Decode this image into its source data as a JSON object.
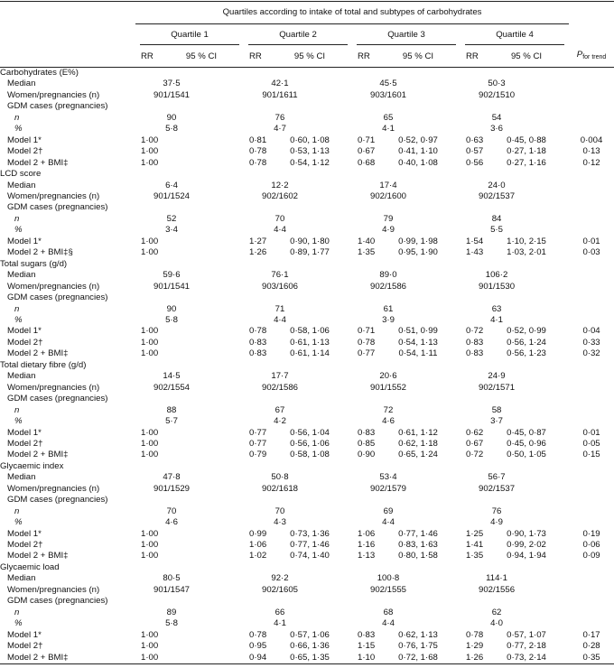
{
  "table": {
    "header": {
      "span_title": "Quartiles according to intake of total and subtypes of carbohydrates",
      "quartiles": [
        "Quartile 1",
        "Quartile 2",
        "Quartile 3",
        "Quartile 4"
      ],
      "rr": "RR",
      "ci": "95 % CI",
      "p_trend": {
        "symbol": "P",
        "subscript": "for trend"
      }
    },
    "sections": [
      {
        "title": "Carbohydrates (E%)",
        "rows": [
          {
            "label": "Median",
            "values": [
              "37·5",
              "42·1",
              "45·5",
              "50·3"
            ]
          },
          {
            "label": "Women/pregnancies (n)",
            "values": [
              "901/1541",
              "901/1611",
              "903/1601",
              "902/1510"
            ]
          },
          {
            "label": "GDM cases (pregnancies)",
            "rows": [
              {
                "label": "n",
                "values": [
                  "90",
                  "76",
                  "65",
                  "54"
                ]
              },
              {
                "label": "%",
                "values": [
                  "5·8",
                  "4·7",
                  "4·1",
                  "3·6"
                ]
              }
            ]
          },
          {
            "label": "Model 1*",
            "rr": [
              "1·00",
              "0·81",
              "0·71",
              "0·63"
            ],
            "ci": [
              "0·60, 1·08",
              "0·52, 0·97",
              "0·45, 0·88"
            ],
            "p": "0·004"
          },
          {
            "label": "Model 2†",
            "rr": [
              "1·00",
              "0·78",
              "0·67",
              "0·57"
            ],
            "ci": [
              "0·53, 1·13",
              "0·41, 1·10",
              "0·27, 1·18"
            ],
            "p": "0·13"
          },
          {
            "label": "Model 2 + BMI‡",
            "rr": [
              "1·00",
              "0·78",
              "0·68",
              "0·56"
            ],
            "ci": [
              "0·54, 1·12",
              "0·40, 1·08",
              "0·27, 1·16"
            ],
            "p": "0·12"
          }
        ]
      },
      {
        "title": "LCD score",
        "rows": [
          {
            "label": "Median",
            "values": [
              "6·4",
              "12·2",
              "17·4",
              "24·0"
            ]
          },
          {
            "label": "Women/pregnancies (n)",
            "values": [
              "901/1524",
              "902/1602",
              "902/1600",
              "902/1537"
            ]
          },
          {
            "label": "GDM cases (pregnancies)",
            "rows": [
              {
                "label": "n",
                "values": [
                  "52",
                  "70",
                  "79",
                  "84"
                ]
              },
              {
                "label": "%",
                "values": [
                  "3·4",
                  "4·4",
                  "4·9",
                  "5·5"
                ]
              }
            ]
          },
          {
            "label": "Model 1*",
            "rr": [
              "1·00",
              "1·27",
              "1·40",
              "1·54"
            ],
            "ci": [
              "0·90, 1·80",
              "0·99, 1·98",
              "1·10, 2·15"
            ],
            "p": "0·01"
          },
          {
            "label": "Model 2 + BMI‡§",
            "rr": [
              "1·00",
              "1·26",
              "1·35",
              "1·43"
            ],
            "ci": [
              "0·89, 1·77",
              "0·95, 1·90",
              "1·03, 2·01"
            ],
            "p": "0·03"
          }
        ]
      },
      {
        "title": "Total sugars (g/d)",
        "rows": [
          {
            "label": "Median",
            "values": [
              "59·6",
              "76·1",
              "89·0",
              "106·2"
            ]
          },
          {
            "label": "Women/pregnancies (n)",
            "values": [
              "901/1541",
              "903/1606",
              "902/1586",
              "901/1530"
            ]
          },
          {
            "label": "GDM cases (pregnancies)",
            "rows": [
              {
                "label": "n",
                "values": [
                  "90",
                  "71",
                  "61",
                  "63"
                ]
              },
              {
                "label": "%",
                "values": [
                  "5·8",
                  "4·4",
                  "3·9",
                  "4·1"
                ]
              }
            ]
          },
          {
            "label": "Model 1*",
            "rr": [
              "1·00",
              "0·78",
              "0·71",
              "0·72"
            ],
            "ci": [
              "0·58, 1·06",
              "0·51, 0·99",
              "0·52, 0·99"
            ],
            "p": "0·04"
          },
          {
            "label": "Model 2†",
            "rr": [
              "1·00",
              "0·83",
              "0·78",
              "0·83"
            ],
            "ci": [
              "0·61, 1·13",
              "0·54, 1·13",
              "0·56, 1·24"
            ],
            "p": "0·33"
          },
          {
            "label": "Model 2 + BMI‡",
            "rr": [
              "1·00",
              "0·83",
              "0·77",
              "0·83"
            ],
            "ci": [
              "0·61, 1·14",
              "0·54, 1·11",
              "0·56, 1·23"
            ],
            "p": "0·32"
          }
        ]
      },
      {
        "title": "Total dietary fibre (g/d)",
        "rows": [
          {
            "label": "Median",
            "values": [
              "14·5",
              "17·7",
              "20·6",
              "24·9"
            ]
          },
          {
            "label": "Women/pregnancies (n)",
            "values": [
              "902/1554",
              "902/1586",
              "901/1552",
              "902/1571"
            ]
          },
          {
            "label": "GDM cases (pregnancies)",
            "rows": [
              {
                "label": "n",
                "values": [
                  "88",
                  "67",
                  "72",
                  "58"
                ]
              },
              {
                "label": "%",
                "values": [
                  "5·7",
                  "4·2",
                  "4·6",
                  "3·7"
                ]
              }
            ]
          },
          {
            "label": "Model 1*",
            "rr": [
              "1·00",
              "0·77",
              "0·83",
              "0·62"
            ],
            "ci": [
              "0·56, 1·04",
              "0·61, 1·12",
              "0·45, 0·87"
            ],
            "p": "0·01"
          },
          {
            "label": "Model 2†",
            "rr": [
              "1·00",
              "0·77",
              "0·85",
              "0·67"
            ],
            "ci": [
              "0·56, 1·06",
              "0·62, 1·18",
              "0·45, 0·96"
            ],
            "p": "0·05"
          },
          {
            "label": "Model 2 + BMI‡",
            "rr": [
              "1·00",
              "0·79",
              "0·90",
              "0·72"
            ],
            "ci": [
              "0·58, 1·08",
              "0·65, 1·24",
              "0·50, 1·05"
            ],
            "p": "0·15"
          }
        ]
      },
      {
        "title": "Glycaemic index",
        "rows": [
          {
            "label": "Median",
            "values": [
              "47·8",
              "50·8",
              "53·4",
              "56·7"
            ]
          },
          {
            "label": "Women/pregnancies (n)",
            "values": [
              "901/1529",
              "902/1618",
              "902/1579",
              "902/1537"
            ]
          },
          {
            "label": "GDM cases (pregnancies)",
            "rows": [
              {
                "label": "n",
                "values": [
                  "70",
                  "70",
                  "69",
                  "76"
                ]
              },
              {
                "label": "%",
                "values": [
                  "4·6",
                  "4·3",
                  "4·4",
                  "4·9"
                ]
              }
            ]
          },
          {
            "label": "Model 1*",
            "rr": [
              "1·00",
              "0·99",
              "1·06",
              "1·25"
            ],
            "ci": [
              "0·73, 1·36",
              "0·77, 1·46",
              "0·90, 1·73"
            ],
            "p": "0·19"
          },
          {
            "label": "Model 2†",
            "rr": [
              "1·00",
              "1·06",
              "1·16",
              "1·41"
            ],
            "ci": [
              "0·77, 1·46",
              "0·83, 1·63",
              "0·99, 2·02"
            ],
            "p": "0·06"
          },
          {
            "label": "Model 2 + BMI‡",
            "rr": [
              "1·00",
              "1·02",
              "1·13",
              "1·35"
            ],
            "ci": [
              "0·74, 1·40",
              "0·80, 1·58",
              "0·94, 1·94"
            ],
            "p": "0·09"
          }
        ]
      },
      {
        "title": "Glycaemic load",
        "rows": [
          {
            "label": "Median",
            "values": [
              "80·5",
              "92·2",
              "100·8",
              "114·1"
            ]
          },
          {
            "label": "Women/pregnancies (n)",
            "values": [
              "901/1547",
              "902/1605",
              "902/1555",
              "902/1556"
            ]
          },
          {
            "label": "GDM cases (pregnancies)",
            "rows": [
              {
                "label": "n",
                "values": [
                  "89",
                  "66",
                  "68",
                  "62"
                ]
              },
              {
                "label": "%",
                "values": [
                  "5·8",
                  "4·1",
                  "4·4",
                  "4·0"
                ]
              }
            ]
          },
          {
            "label": "Model 1*",
            "rr": [
              "1·00",
              "0·78",
              "0·83",
              "0·78"
            ],
            "ci": [
              "0·57, 1·06",
              "0·62, 1·13",
              "0·57, 1·07"
            ],
            "p": "0·17"
          },
          {
            "label": "Model 2†",
            "rr": [
              "1·00",
              "0·95",
              "1·15",
              "1·29"
            ],
            "ci": [
              "0·66, 1·36",
              "0·76, 1·75",
              "0·77, 2·18"
            ],
            "p": "0·28"
          },
          {
            "label": "Model 2 + BMI‡",
            "rr": [
              "1·00",
              "0·94",
              "1·10",
              "1·26"
            ],
            "ci": [
              "0·65, 1·35",
              "0·72, 1·68",
              "0·73, 2·14"
            ],
            "p": "0·35"
          }
        ]
      }
    ]
  }
}
